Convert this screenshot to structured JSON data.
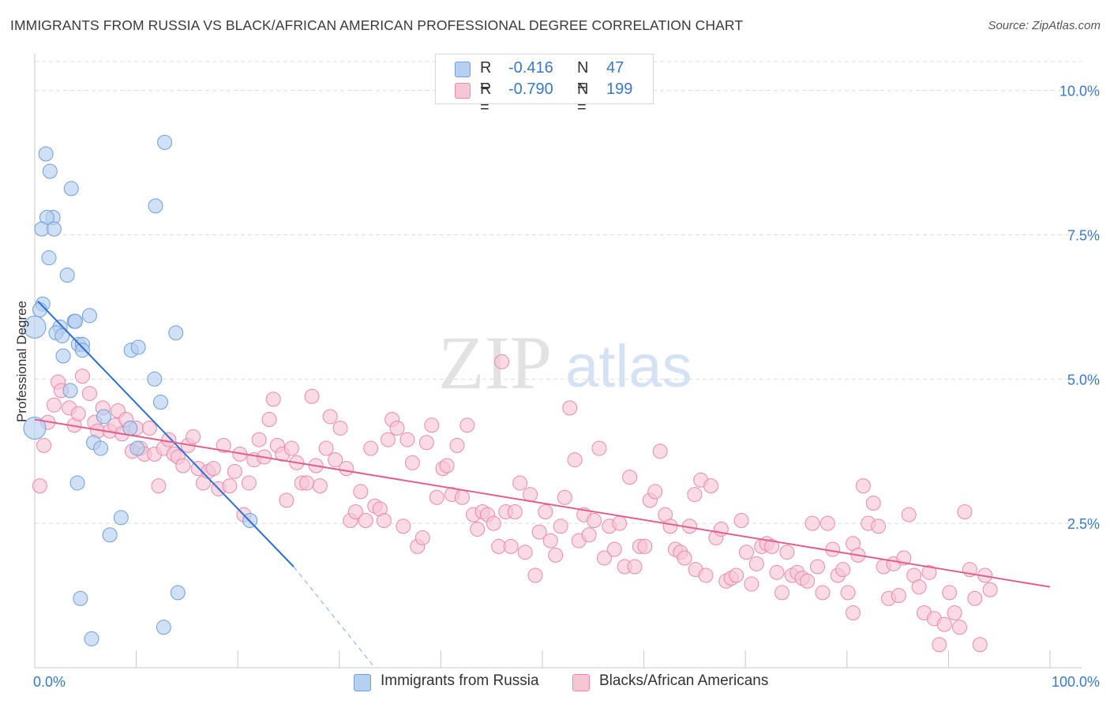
{
  "title": "IMMIGRANTS FROM RUSSIA VS BLACK/AFRICAN AMERICAN PROFESSIONAL DEGREE CORRELATION CHART",
  "source": "Source: ZipAtlas.com",
  "watermark": {
    "zip": "ZIP",
    "atlas": "atlas"
  },
  "colors": {
    "blue_fill": "#b7cff0",
    "blue_stroke": "#6e9fdc",
    "blue_line": "#2e6fd1",
    "pink_fill": "#f7c6d5",
    "pink_stroke": "#e98aaa",
    "pink_line": "#e0608c",
    "axis_text": "#3a78c9"
  },
  "legend": {
    "rows": [
      {
        "r_label": "R =",
        "r_value": "-0.416",
        "n_label": "N =",
        "n_value": "47"
      },
      {
        "r_label": "R =",
        "r_value": "-0.790",
        "n_label": "N =",
        "n_value": "199"
      }
    ]
  },
  "chart_data": {
    "type": "scatter",
    "title": "IMMIGRANTS FROM RUSSIA VS BLACK/AFRICAN AMERICAN PROFESSIONAL DEGREE CORRELATION CHART",
    "xlabel": "",
    "ylabel": "Professional Degree",
    "xlim": [
      0,
      100
    ],
    "ylim": [
      0,
      10.5
    ],
    "x_tick_labels": [
      "0.0%",
      "100.0%"
    ],
    "y_ticks": [
      2.5,
      5.0,
      7.5,
      10.0
    ],
    "y_tick_labels": [
      "2.5%",
      "5.0%",
      "7.5%",
      "10.0%"
    ],
    "series": [
      {
        "name": "Immigrants from Russia",
        "color": "blue",
        "points": [
          [
            1.1,
            8.9
          ],
          [
            1.5,
            8.6
          ],
          [
            3.6,
            8.3
          ],
          [
            12.8,
            9.1
          ],
          [
            11.9,
            8.0
          ],
          [
            1.8,
            7.8
          ],
          [
            1.2,
            7.8
          ],
          [
            0.7,
            7.6
          ],
          [
            1.9,
            7.6
          ],
          [
            1.4,
            7.1
          ],
          [
            3.2,
            6.8
          ],
          [
            0.8,
            6.3
          ],
          [
            0.5,
            6.2
          ],
          [
            5.4,
            6.1
          ],
          [
            3.9,
            6.0
          ],
          [
            4.0,
            6.0
          ],
          [
            2.5,
            5.9
          ],
          [
            0.0,
            5.9
          ],
          [
            2.1,
            5.8
          ],
          [
            2.7,
            5.75
          ],
          [
            13.9,
            5.8
          ],
          [
            4.3,
            5.6
          ],
          [
            4.7,
            5.6
          ],
          [
            9.5,
            5.5
          ],
          [
            10.2,
            5.55
          ],
          [
            4.7,
            5.5
          ],
          [
            2.8,
            5.4
          ],
          [
            11.8,
            5.0
          ],
          [
            3.5,
            4.8
          ],
          [
            12.4,
            4.6
          ],
          [
            6.8,
            4.35
          ],
          [
            9.4,
            4.15
          ],
          [
            0.0,
            4.15
          ],
          [
            5.8,
            3.9
          ],
          [
            10.1,
            3.8
          ],
          [
            6.5,
            3.8
          ],
          [
            4.2,
            3.2
          ],
          [
            8.5,
            2.6
          ],
          [
            21.2,
            2.55
          ],
          [
            7.4,
            2.3
          ],
          [
            14.1,
            1.3
          ],
          [
            4.5,
            1.2
          ],
          [
            12.7,
            0.7
          ],
          [
            5.6,
            0.5
          ]
        ],
        "trend": {
          "x0": 0.3,
          "y0": 6.35,
          "x1": 25.5,
          "y1": 1.75,
          "dash_x1": 33.5,
          "dash_y1": 0.0
        }
      },
      {
        "name": "Blacks/African Americans",
        "color": "pink",
        "points": [
          [
            0.5,
            3.15
          ],
          [
            0.9,
            3.85
          ],
          [
            1.3,
            4.25
          ],
          [
            1.9,
            4.55
          ],
          [
            2.3,
            4.95
          ],
          [
            2.6,
            4.8
          ],
          [
            3.4,
            4.5
          ],
          [
            3.9,
            4.2
          ],
          [
            4.3,
            4.4
          ],
          [
            4.7,
            5.05
          ],
          [
            5.4,
            4.75
          ],
          [
            5.9,
            4.25
          ],
          [
            6.2,
            4.1
          ],
          [
            6.7,
            4.5
          ],
          [
            7.4,
            4.1
          ],
          [
            7.9,
            4.2
          ],
          [
            8.2,
            4.45
          ],
          [
            8.6,
            4.05
          ],
          [
            9.0,
            4.3
          ],
          [
            9.6,
            3.75
          ],
          [
            10.0,
            4.15
          ],
          [
            10.4,
            3.8
          ],
          [
            10.8,
            3.7
          ],
          [
            11.3,
            4.15
          ],
          [
            11.8,
            3.7
          ],
          [
            12.2,
            3.15
          ],
          [
            12.7,
            3.8
          ],
          [
            13.2,
            3.95
          ],
          [
            13.7,
            3.7
          ],
          [
            14.1,
            3.65
          ],
          [
            14.6,
            3.5
          ],
          [
            15.1,
            3.85
          ],
          [
            15.6,
            4.0
          ],
          [
            16.1,
            3.45
          ],
          [
            16.6,
            3.2
          ],
          [
            17.1,
            3.4
          ],
          [
            17.6,
            3.45
          ],
          [
            18.1,
            3.1
          ],
          [
            18.6,
            3.85
          ],
          [
            19.2,
            3.15
          ],
          [
            19.7,
            3.4
          ],
          [
            20.2,
            3.7
          ],
          [
            20.6,
            2.65
          ],
          [
            21.1,
            3.2
          ],
          [
            21.6,
            3.6
          ],
          [
            22.1,
            3.95
          ],
          [
            22.6,
            3.65
          ],
          [
            23.1,
            4.3
          ],
          [
            23.5,
            4.65
          ],
          [
            23.9,
            3.85
          ],
          [
            24.4,
            3.7
          ],
          [
            24.8,
            2.9
          ],
          [
            25.3,
            3.8
          ],
          [
            25.8,
            3.55
          ],
          [
            26.3,
            3.2
          ],
          [
            26.8,
            3.2
          ],
          [
            27.3,
            4.7
          ],
          [
            27.7,
            3.5
          ],
          [
            28.1,
            3.15
          ],
          [
            28.7,
            3.8
          ],
          [
            29.1,
            4.35
          ],
          [
            29.6,
            3.6
          ],
          [
            30.1,
            4.15
          ],
          [
            30.7,
            3.45
          ],
          [
            31.1,
            2.55
          ],
          [
            31.6,
            2.7
          ],
          [
            32.1,
            3.05
          ],
          [
            32.6,
            2.55
          ],
          [
            33.1,
            3.8
          ],
          [
            33.5,
            2.8
          ],
          [
            34.0,
            2.75
          ],
          [
            34.4,
            2.55
          ],
          [
            34.8,
            3.95
          ],
          [
            35.2,
            4.3
          ],
          [
            35.7,
            4.15
          ],
          [
            36.3,
            2.45
          ],
          [
            36.7,
            3.95
          ],
          [
            37.2,
            3.55
          ],
          [
            37.7,
            2.1
          ],
          [
            38.2,
            2.25
          ],
          [
            38.6,
            3.9
          ],
          [
            39.1,
            4.2
          ],
          [
            39.6,
            2.95
          ],
          [
            40.2,
            3.45
          ],
          [
            40.6,
            3.5
          ],
          [
            41.1,
            3.0
          ],
          [
            41.6,
            3.85
          ],
          [
            42.1,
            2.95
          ],
          [
            42.6,
            4.2
          ],
          [
            43.2,
            2.65
          ],
          [
            43.6,
            2.4
          ],
          [
            44.1,
            2.7
          ],
          [
            44.6,
            2.65
          ],
          [
            45.2,
            2.5
          ],
          [
            45.7,
            2.1
          ],
          [
            46.0,
            5.3
          ],
          [
            46.4,
            2.7
          ],
          [
            46.9,
            2.1
          ],
          [
            47.3,
            2.7
          ],
          [
            47.8,
            3.2
          ],
          [
            48.3,
            2.0
          ],
          [
            48.8,
            3.0
          ],
          [
            49.3,
            1.6
          ],
          [
            49.7,
            2.35
          ],
          [
            50.3,
            2.7
          ],
          [
            50.8,
            2.2
          ],
          [
            51.3,
            1.95
          ],
          [
            51.8,
            2.45
          ],
          [
            52.2,
            2.95
          ],
          [
            52.7,
            4.5
          ],
          [
            53.2,
            3.6
          ],
          [
            53.6,
            2.2
          ],
          [
            54.1,
            2.65
          ],
          [
            54.6,
            2.3
          ],
          [
            55.1,
            2.55
          ],
          [
            55.6,
            3.8
          ],
          [
            56.1,
            1.9
          ],
          [
            56.6,
            2.45
          ],
          [
            57.1,
            2.05
          ],
          [
            57.6,
            2.5
          ],
          [
            58.1,
            1.75
          ],
          [
            58.6,
            3.3
          ],
          [
            59.1,
            1.75
          ],
          [
            59.6,
            2.1
          ],
          [
            60.1,
            2.1
          ],
          [
            60.6,
            2.9
          ],
          [
            61.1,
            3.05
          ],
          [
            61.6,
            3.75
          ],
          [
            62.1,
            2.65
          ],
          [
            62.6,
            2.45
          ],
          [
            63.1,
            2.05
          ],
          [
            63.6,
            2.0
          ],
          [
            64.0,
            1.9
          ],
          [
            64.5,
            2.45
          ],
          [
            65.1,
            1.7
          ],
          [
            65.6,
            3.25
          ],
          [
            66.1,
            1.6
          ],
          [
            66.6,
            3.15
          ],
          [
            67.1,
            2.25
          ],
          [
            67.6,
            2.4
          ],
          [
            68.1,
            1.5
          ],
          [
            68.6,
            1.55
          ],
          [
            69.1,
            1.6
          ],
          [
            69.6,
            2.55
          ],
          [
            70.1,
            2.0
          ],
          [
            70.6,
            1.45
          ],
          [
            71.1,
            1.8
          ],
          [
            71.6,
            2.1
          ],
          [
            72.1,
            2.15
          ],
          [
            72.6,
            2.1
          ],
          [
            73.1,
            1.65
          ],
          [
            73.6,
            1.3
          ],
          [
            74.1,
            2.0
          ],
          [
            74.6,
            1.6
          ],
          [
            75.1,
            1.65
          ],
          [
            75.6,
            1.55
          ],
          [
            76.1,
            1.5
          ],
          [
            76.6,
            2.5
          ],
          [
            77.1,
            1.75
          ],
          [
            77.6,
            1.3
          ],
          [
            78.1,
            2.5
          ],
          [
            78.6,
            2.05
          ],
          [
            79.1,
            1.6
          ],
          [
            79.6,
            1.7
          ],
          [
            80.1,
            1.3
          ],
          [
            80.6,
            2.15
          ],
          [
            81.1,
            1.95
          ],
          [
            81.6,
            3.15
          ],
          [
            82.1,
            2.5
          ],
          [
            82.6,
            2.85
          ],
          [
            83.1,
            2.45
          ],
          [
            83.6,
            1.75
          ],
          [
            84.1,
            1.2
          ],
          [
            84.6,
            1.8
          ],
          [
            85.1,
            1.25
          ],
          [
            85.6,
            1.9
          ],
          [
            86.1,
            2.65
          ],
          [
            86.6,
            1.6
          ],
          [
            87.1,
            1.4
          ],
          [
            87.6,
            0.95
          ],
          [
            88.1,
            1.65
          ],
          [
            88.6,
            0.85
          ],
          [
            89.1,
            0.4
          ],
          [
            89.6,
            0.75
          ],
          [
            90.1,
            1.3
          ],
          [
            90.6,
            0.95
          ],
          [
            91.1,
            0.7
          ],
          [
            91.6,
            2.7
          ],
          [
            92.1,
            1.7
          ],
          [
            92.6,
            1.2
          ],
          [
            93.1,
            0.4
          ],
          [
            93.6,
            1.6
          ],
          [
            94.1,
            1.35
          ],
          [
            80.6,
            0.95
          ],
          [
            65.0,
            3.0
          ]
        ],
        "trend": {
          "x0": 0.0,
          "y0": 4.3,
          "x1": 100.0,
          "y1": 1.4
        }
      }
    ]
  }
}
